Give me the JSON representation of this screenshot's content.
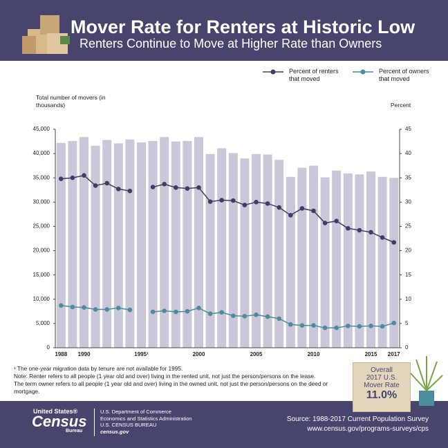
{
  "header": {
    "title": "Mover Rate for Renters at Historic Low",
    "subtitle": "Renters Continue to Move at Higher Rate than Owners"
  },
  "chart_data": {
    "type": "bar_line",
    "y_label": "Total number of movers (in thousands)",
    "y2_label": "Percent",
    "categories": [
      "1988",
      null,
      "1990",
      null,
      null,
      null,
      null,
      "1995¹",
      null,
      null,
      null,
      null,
      "2000",
      null,
      null,
      null,
      null,
      "2005",
      null,
      null,
      null,
      null,
      "2010",
      null,
      null,
      null,
      null,
      "2015",
      null,
      "2017"
    ],
    "bars": {
      "color": "#cbc7d8",
      "values": [
        42200,
        42600,
        43400,
        41600,
        42800,
        42100,
        42900,
        42300,
        42600,
        43400,
        42500,
        42600,
        43400,
        39900,
        41100,
        40100,
        39000,
        39900,
        39800,
        38700,
        35200,
        37100,
        37500,
        35100,
        36500,
        35900,
        35700,
        36300,
        35200,
        35000
      ]
    },
    "series": [
      {
        "name": "Percent of renters that moved",
        "color": "#3f3d65",
        "axis": "y2",
        "values": [
          34.8,
          35.0,
          35.5,
          33.4,
          33.9,
          32.7,
          32.3,
          null,
          33.1,
          33.7,
          33.0,
          32.8,
          33.0,
          30.1,
          30.4,
          30.3,
          29.4,
          30.0,
          29.7,
          28.9,
          27.3,
          28.7,
          28.2,
          25.7,
          26.1,
          24.6,
          24.2,
          23.8,
          22.7,
          21.7
        ]
      },
      {
        "name": "Percent of owners that moved",
        "color": "#4b8d9d",
        "axis": "y2",
        "values": [
          8.7,
          8.4,
          8.3,
          7.9,
          7.9,
          8.2,
          7.8,
          null,
          7.4,
          7.6,
          7.4,
          7.5,
          8.2,
          7.0,
          7.3,
          6.6,
          6.5,
          6.8,
          6.4,
          6.0,
          4.8,
          4.6,
          4.6,
          4.1,
          4.1,
          4.5,
          4.4,
          4.5,
          4.4,
          5.1
        ]
      }
    ],
    "ylim": [
      0,
      45000
    ],
    "yticks": [
      0,
      {
        "value": 5000,
        "label": "5,000"
      },
      {
        "value": 10000,
        "label": "10,000"
      },
      {
        "value": 15000,
        "label": "15,000"
      },
      {
        "value": 20000,
        "label": "20,000"
      },
      {
        "value": 25000,
        "label": "25,000"
      },
      {
        "value": 30000,
        "label": "30,000"
      },
      {
        "value": 35000,
        "label": "35,000"
      },
      {
        "value": 40000,
        "label": "40,000"
      },
      {
        "value": 45000,
        "label": "45,000"
      }
    ],
    "y2lim": [
      0,
      45
    ],
    "y2ticks": [
      0,
      5,
      10,
      15,
      20,
      25,
      30,
      35,
      40,
      45
    ]
  },
  "notes": [
    "¹ The one-year migration data by tenure are not available for 1995.",
    "Note: Renter refers to all people (1 year old and over) living in the rented unit, not just the person/persons on the lease.",
    "The term owner refers to all people (1 year old and over) living in the owned unit, not just the person/persons on the deed or mortgage."
  ],
  "badge": {
    "line1": "Overall",
    "line2": "2017 U.S.",
    "line3": "Mover Rate",
    "rate": "11.0%"
  },
  "footer": {
    "logo_top": "United States®",
    "logo_main": "Census",
    "logo_bottom": "Bureau",
    "dept": "U.S. Department of Commerce",
    "admin": "Economics and Statistics Administration",
    "bureau": "U.S. CENSUS BUREAU",
    "site": "census.gov",
    "source": "Source: 1988-2017 Current Population Survey",
    "url": "www.census.gov/programs-surveys/cps"
  }
}
